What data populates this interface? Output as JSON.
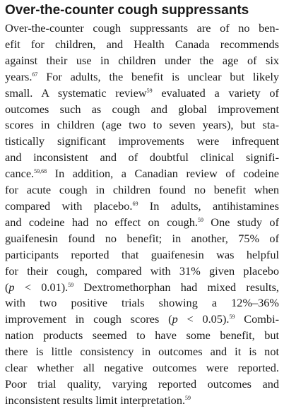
{
  "section": {
    "heading": "Over-the-counter cough suppressants"
  },
  "paragraph": {
    "lines": [
      {
        "parts": [
          {
            "t": "Over-the-counter cough suppressants are of no ben-"
          }
        ]
      },
      {
        "parts": [
          {
            "t": "efit for children, and Health Canada recommends"
          }
        ]
      },
      {
        "parts": [
          {
            "t": "against their use in children under the age of six"
          }
        ]
      },
      {
        "parts": [
          {
            "t": "years."
          },
          {
            "sup": "67"
          },
          {
            "t": " For adults, the benefit is unclear but likely"
          }
        ]
      },
      {
        "parts": [
          {
            "t": "small. A systematic review"
          },
          {
            "sup": "59"
          },
          {
            "t": " evaluated a variety of"
          }
        ]
      },
      {
        "parts": [
          {
            "t": "outcomes such as cough and global improvement"
          }
        ]
      },
      {
        "parts": [
          {
            "t": "scores in children (age two to seven years), but sta-"
          }
        ]
      },
      {
        "parts": [
          {
            "t": "tistically significant improvements were infrequent"
          }
        ]
      },
      {
        "parts": [
          {
            "t": "and inconsistent and of doubtful clinical signifi-"
          }
        ]
      },
      {
        "parts": [
          {
            "t": "cance."
          },
          {
            "sup": "59,68"
          },
          {
            "t": " In addition, a Canadian review of codeine"
          }
        ]
      },
      {
        "parts": [
          {
            "t": "for acute cough in children found no benefit when"
          }
        ]
      },
      {
        "parts": [
          {
            "t": "compared with placebo."
          },
          {
            "sup": "69"
          },
          {
            "t": " In adults, antihistamines"
          }
        ]
      },
      {
        "parts": [
          {
            "t": "and codeine had no effect on cough."
          },
          {
            "sup": "59"
          },
          {
            "t": " One study of"
          }
        ]
      },
      {
        "parts": [
          {
            "t": "guaifenesin found no benefit; in another, 75% of"
          }
        ]
      },
      {
        "parts": [
          {
            "t": "participants reported that guaifenesin was helpful"
          }
        ]
      },
      {
        "parts": [
          {
            "t": "for their cough, compared with 31% given placebo"
          }
        ]
      },
      {
        "parts": [
          {
            "t": "("
          },
          {
            "i": "p"
          },
          {
            "t": " < 0.01)."
          },
          {
            "sup": "59"
          },
          {
            "t": " Dextromethorphan had mixed results,"
          }
        ]
      },
      {
        "parts": [
          {
            "t": "with two positive trials showing a 12%–36%"
          }
        ]
      },
      {
        "parts": [
          {
            "t": "improvement in cough scores ("
          },
          {
            "i": "p"
          },
          {
            "t": " < 0.05)."
          },
          {
            "sup": "59"
          },
          {
            "t": " Combi-"
          }
        ]
      },
      {
        "parts": [
          {
            "t": "nation products seemed to have some benefit, but"
          }
        ]
      },
      {
        "parts": [
          {
            "t": "there is little consistency in outcomes and it is not"
          }
        ]
      },
      {
        "parts": [
          {
            "t": "clear whether all negative outcomes were reported."
          }
        ]
      },
      {
        "parts": [
          {
            "t": "Poor trial quality, varying reported outcomes and"
          }
        ]
      },
      {
        "parts": [
          {
            "t": "inconsistent results limit interpretation."
          },
          {
            "sup": "59"
          }
        ]
      }
    ]
  }
}
